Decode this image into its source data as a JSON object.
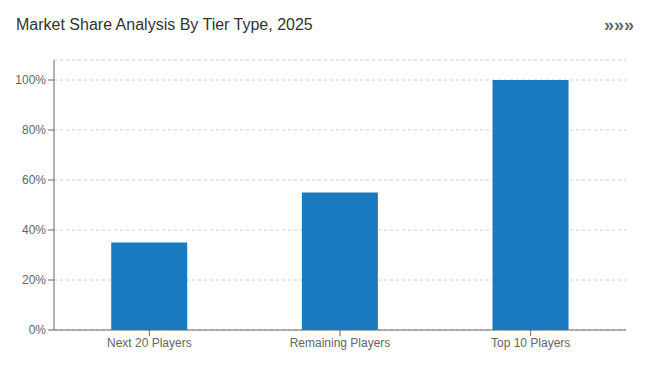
{
  "chart_data": {
    "type": "bar",
    "title": "Market Share Analysis By Tier Type, 2025",
    "annotations": [
      "»»»"
    ],
    "categories": [
      "Next 20 Players",
      "Remaining Players",
      "Top 10 Players"
    ],
    "values": [
      35,
      55,
      100
    ],
    "color": "#1a7abf",
    "ylim": [
      0,
      108
    ],
    "yticks": [
      {
        "value": 0,
        "label": "0%"
      },
      {
        "value": 20,
        "label": "20%"
      },
      {
        "value": 40,
        "label": "40%"
      },
      {
        "value": 60,
        "label": "60%"
      },
      {
        "value": 80,
        "label": "80%"
      },
      {
        "value": 100,
        "label": "100%"
      }
    ],
    "grid": true
  }
}
